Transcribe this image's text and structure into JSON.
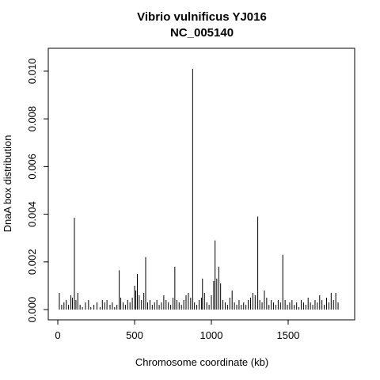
{
  "chart_data": {
    "type": "bar",
    "title": "Vibrio vulnificus YJ016",
    "subtitle": "NC_005140",
    "x_label": "Chromosome coordinate (kb)",
    "y_label": "DnaA box distribution",
    "color": "#000000",
    "xlim": [
      -62,
      1933
    ],
    "ylim": [
      -0.00043,
      0.01096
    ],
    "xticks": [
      0,
      500,
      1000,
      1500
    ],
    "yticks": [
      {
        "value": 0,
        "label": "0.000"
      },
      {
        "value": 0.002,
        "label": "0.002"
      },
      {
        "value": 0.004,
        "label": "0.004"
      },
      {
        "value": 0.006,
        "label": "0.006"
      },
      {
        "value": 0.008,
        "label": "0.008"
      },
      {
        "value": 0.01,
        "label": "0.010"
      }
    ],
    "x": [
      10,
      25,
      40,
      55,
      70,
      85,
      95,
      108,
      118,
      130,
      145,
      160,
      180,
      200,
      215,
      235,
      255,
      275,
      290,
      305,
      320,
      340,
      355,
      370,
      385,
      400,
      410,
      425,
      440,
      455,
      470,
      485,
      500,
      508,
      518,
      530,
      545,
      560,
      572,
      585,
      600,
      615,
      630,
      645,
      660,
      675,
      690,
      705,
      720,
      735,
      750,
      762,
      775,
      790,
      805,
      820,
      835,
      850,
      865,
      878,
      890,
      905,
      920,
      935,
      942,
      955,
      970,
      985,
      1000,
      1015,
      1024,
      1035,
      1048,
      1060,
      1075,
      1090,
      1105,
      1120,
      1135,
      1150,
      1165,
      1180,
      1195,
      1210,
      1225,
      1240,
      1255,
      1270,
      1285,
      1302,
      1315,
      1330,
      1345,
      1360,
      1375,
      1390,
      1405,
      1420,
      1435,
      1450,
      1465,
      1480,
      1495,
      1510,
      1525,
      1540,
      1555,
      1570,
      1585,
      1600,
      1615,
      1630,
      1645,
      1660,
      1675,
      1690,
      1705,
      1720,
      1735,
      1750,
      1765,
      1780,
      1795,
      1810,
      1825
    ],
    "values": [
      0.0007,
      0.0002,
      0.0003,
      0.0004,
      0.0002,
      0.0006,
      0.0005,
      0.00385,
      0.0004,
      0.0007,
      0.0002,
      0.0001,
      0.0003,
      0.0004,
      0.0001,
      0.0002,
      0.0003,
      0.0001,
      0.0004,
      0.0003,
      0.0004,
      0.0002,
      0.0003,
      0.0001,
      0.0002,
      0.00165,
      0.0005,
      0.0003,
      0.0002,
      0.0004,
      0.0003,
      0.0005,
      0.001,
      0.0008,
      0.0015,
      0.0006,
      0.0004,
      0.0007,
      0.0022,
      0.0003,
      0.0004,
      0.0002,
      0.0003,
      0.0004,
      0.0002,
      0.0003,
      0.0006,
      0.0004,
      0.0003,
      0.0002,
      0.0005,
      0.0018,
      0.0004,
      0.0003,
      0.0002,
      0.0004,
      0.0006,
      0.0007,
      0.0005,
      0.0101,
      0.0003,
      0.0002,
      0.0004,
      0.0005,
      0.0013,
      0.0007,
      0.0003,
      0.0002,
      0.0006,
      0.0012,
      0.0029,
      0.0013,
      0.0018,
      0.0011,
      0.0004,
      0.0003,
      0.0002,
      0.0005,
      0.0008,
      0.0003,
      0.0002,
      0.0004,
      0.0002,
      0.0003,
      0.0002,
      0.0004,
      0.0005,
      0.0007,
      0.0006,
      0.0039,
      0.0004,
      0.0003,
      0.0008,
      0.0005,
      0.0002,
      0.0004,
      0.0003,
      0.0002,
      0.0004,
      0.0003,
      0.0023,
      0.0004,
      0.0002,
      0.0003,
      0.0004,
      0.0002,
      0.0003,
      0.0001,
      0.0004,
      0.0003,
      0.0002,
      0.0005,
      0.0003,
      0.0002,
      0.0004,
      0.0003,
      0.0006,
      0.0004,
      0.0002,
      0.0005,
      0.0003,
      0.0007,
      0.0004,
      0.0007,
      0.0003
    ]
  }
}
